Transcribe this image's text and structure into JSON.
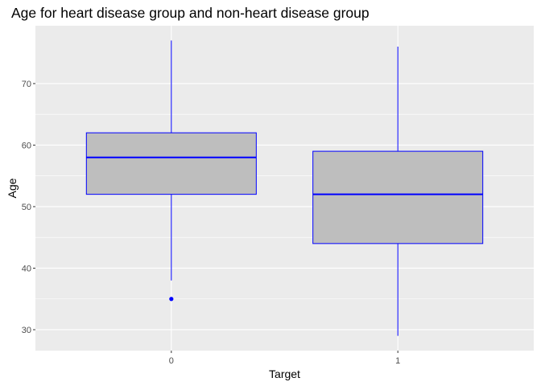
{
  "chart_data": {
    "type": "boxplot",
    "title": "Age for heart disease group and non-heart disease group",
    "xlabel": "Target",
    "ylabel": "Age",
    "categories": [
      "0",
      "1"
    ],
    "boxes": [
      {
        "category": "0",
        "whisker_low": 38,
        "q1": 52,
        "median": 58,
        "q3": 62,
        "whisker_high": 77,
        "outliers": [
          35
        ]
      },
      {
        "category": "1",
        "whisker_low": 29,
        "q1": 44,
        "median": 52,
        "q3": 59,
        "whisker_high": 76,
        "outliers": []
      }
    ],
    "ylim": [
      26.6,
      79.4
    ],
    "yticks": [
      30,
      40,
      50,
      60,
      70
    ],
    "grid": true,
    "colors": {
      "panel_background": "#ebebeb",
      "grid_major": "#ffffff",
      "box_fill": "#bebebe",
      "box_outline": "#0000ff",
      "outlier": "#0000ff"
    }
  }
}
